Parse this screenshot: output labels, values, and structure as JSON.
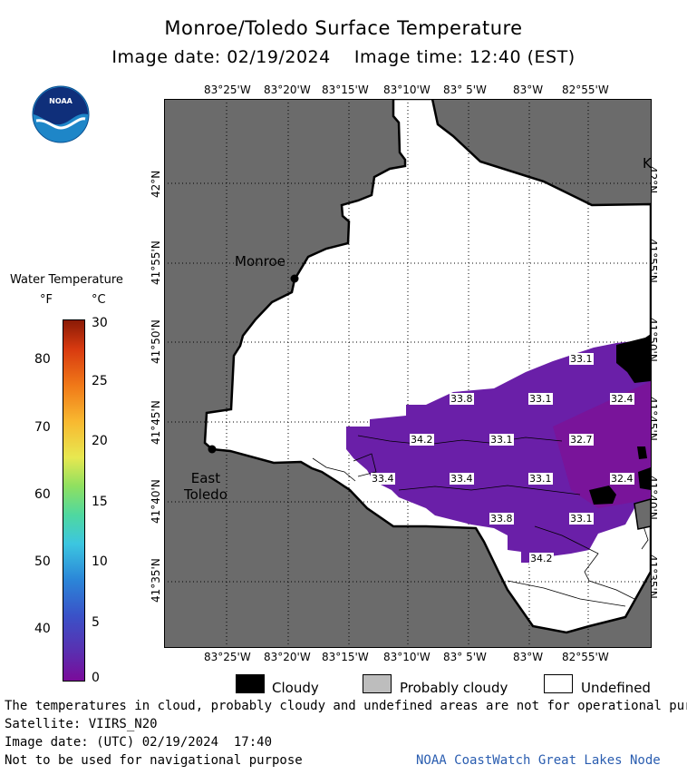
{
  "header": {
    "title": "Monroe/Toledo Surface Temperature",
    "date_label": "Image date: 02/19/2024",
    "time_label": "Image time: 12:40 (EST)"
  },
  "map": {
    "lon_labels_top": [
      "83°25'W",
      "83°20'W",
      "83°15'W",
      "83°10'W",
      "83° 5'W",
      "83°W",
      "82°55'W"
    ],
    "lon_labels_bottom": [
      "83°25'W",
      "83°20'W",
      "83°15'W",
      "83°10'W",
      "83° 5'W",
      "83°W",
      "82°55'W"
    ],
    "lat_labels": [
      "42°N",
      "41°55'N",
      "41°50'N",
      "41°45'N",
      "41°40'N",
      "41°35'N"
    ],
    "cities": [
      "Monroe",
      "East\nToledo"
    ],
    "edge_letter": "K",
    "temperatures": [
      {
        "label": "33.1"
      },
      {
        "label": "33.8"
      },
      {
        "label": "33.1"
      },
      {
        "label": "32.4"
      },
      {
        "label": "34.2"
      },
      {
        "label": "33.1"
      },
      {
        "label": "32.7"
      },
      {
        "label": "33.4"
      },
      {
        "label": "33.4"
      },
      {
        "label": "33.1"
      },
      {
        "label": "32.4"
      },
      {
        "label": "33.8"
      },
      {
        "label": "33.1"
      },
      {
        "label": "34.2"
      }
    ]
  },
  "colorbar": {
    "title": "Water Temperature",
    "unit_f": "°F",
    "unit_c": "°C",
    "f_ticks": [
      "80",
      "70",
      "60",
      "50",
      "40"
    ],
    "c_ticks": [
      "30",
      "25",
      "20",
      "15",
      "10",
      "5",
      "0"
    ]
  },
  "legend": {
    "cloudy": "Cloudy",
    "probably_cloudy": "Probably cloudy",
    "undefined": "Undefined"
  },
  "footer": {
    "disclaimer": "The temperatures in cloud, probably cloudy and undefined areas are not for operational pur",
    "satellite": "Satellite: VIIRS_N20",
    "utc_date": "Image date: (UTC) 02/19/2024  17:40",
    "nav_warning": "Not to be used for navigational purpose",
    "credit": "NOAA CoastWatch Great Lakes Node"
  },
  "colors": {
    "land": "#6b6b6b",
    "water_undefined": "#ffffff",
    "temp_purple": "#6a1fa8",
    "cloud": "#000000",
    "credit_blue": "#2a5db0"
  }
}
